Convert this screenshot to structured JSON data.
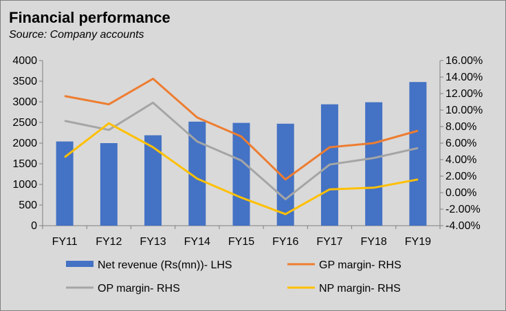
{
  "chart_data": {
    "type": "bar",
    "title": "Financial performance",
    "subtitle": "Source: Company accounts",
    "categories": [
      "FY11",
      "FY12",
      "FY13",
      "FY14",
      "FY15",
      "FY16",
      "FY17",
      "FY18",
      "FY19"
    ],
    "y_left": {
      "min": 0,
      "max": 4000,
      "step": 500,
      "ticks": [
        "0",
        "500",
        "1000",
        "1500",
        "2000",
        "2500",
        "3000",
        "3500",
        "4000"
      ]
    },
    "y_right": {
      "min": -4,
      "max": 16,
      "step": 2,
      "ticks": [
        "-4.00%",
        "-2.00%",
        "0.00%",
        "2.00%",
        "4.00%",
        "6.00%",
        "8.00%",
        "10.00%",
        "12.00%",
        "14.00%",
        "16.00%"
      ]
    },
    "series": [
      {
        "name": "Net revenue (Rs(mn))- LHS",
        "type": "bar",
        "axis": "left",
        "color": "#4472c4",
        "values": [
          2040,
          2000,
          2190,
          2520,
          2490,
          2470,
          2940,
          2990,
          3480
        ]
      },
      {
        "name": "GP margin- RHS",
        "type": "line",
        "axis": "right",
        "color": "#ed7d31",
        "values": [
          11.7,
          10.7,
          13.8,
          9.1,
          6.8,
          1.6,
          5.5,
          6.0,
          7.5
        ]
      },
      {
        "name": "OP margin- RHS",
        "type": "line",
        "axis": "right",
        "color": "#a5a5a5",
        "values": [
          8.7,
          7.6,
          10.9,
          6.2,
          3.9,
          -0.8,
          3.4,
          4.2,
          5.4
        ]
      },
      {
        "name": "NP margin- RHS",
        "type": "line",
        "axis": "right",
        "color": "#ffc000",
        "values": [
          4.3,
          8.4,
          5.5,
          1.7,
          -0.6,
          -2.6,
          0.4,
          0.6,
          1.6
        ]
      }
    ],
    "legend_position": "bottom",
    "grid": false
  }
}
